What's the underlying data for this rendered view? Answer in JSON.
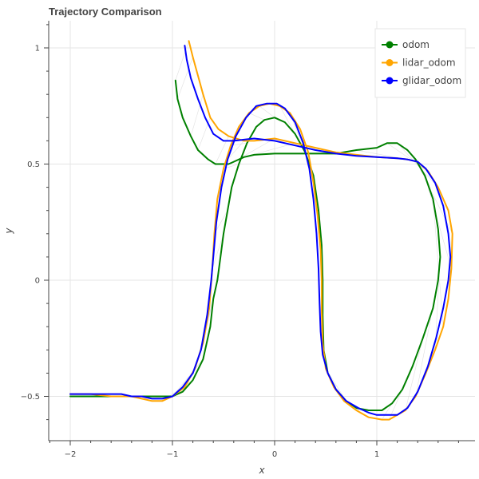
{
  "chart_data": {
    "type": "line",
    "title": "Trajectory Comparison",
    "xlabel": "x",
    "ylabel": "y",
    "xlim": [
      -2.2,
      1.95
    ],
    "ylim": [
      -0.69,
      1.12
    ],
    "x_ticks": [
      -2,
      -1,
      0,
      1
    ],
    "x_tick_labels": [
      "−2",
      "−1",
      "0",
      "1"
    ],
    "y_ticks": [
      -0.5,
      0,
      0.5,
      1
    ],
    "y_tick_labels": [
      "−0.5",
      "0",
      "0.5",
      "1"
    ],
    "grid": true,
    "legend_position": "top-right",
    "series": [
      {
        "name": "odom",
        "color": "#008000",
        "points": [
          [
            -2.0,
            -0.5
          ],
          [
            -1.7,
            -0.5
          ],
          [
            -1.4,
            -0.5
          ],
          [
            -1.2,
            -0.5
          ],
          [
            -1.0,
            -0.5
          ],
          [
            -0.9,
            -0.48
          ],
          [
            -0.8,
            -0.43
          ],
          [
            -0.7,
            -0.34
          ],
          [
            -0.63,
            -0.2
          ],
          [
            -0.6,
            -0.08
          ],
          [
            -0.56,
            0.0
          ],
          [
            -0.53,
            0.1
          ],
          [
            -0.5,
            0.2
          ],
          [
            -0.46,
            0.3
          ],
          [
            -0.42,
            0.4
          ],
          [
            -0.35,
            0.5
          ],
          [
            -0.27,
            0.59
          ],
          [
            -0.18,
            0.66
          ],
          [
            -0.1,
            0.69
          ],
          [
            0.0,
            0.7
          ],
          [
            0.1,
            0.68
          ],
          [
            0.2,
            0.63
          ],
          [
            0.3,
            0.55
          ],
          [
            0.38,
            0.45
          ],
          [
            0.43,
            0.3
          ],
          [
            0.46,
            0.15
          ],
          [
            0.47,
            0.0
          ],
          [
            0.47,
            -0.15
          ],
          [
            0.48,
            -0.3
          ],
          [
            0.52,
            -0.4
          ],
          [
            0.6,
            -0.47
          ],
          [
            0.7,
            -0.52
          ],
          [
            0.8,
            -0.55
          ],
          [
            0.92,
            -0.56
          ],
          [
            1.05,
            -0.56
          ],
          [
            1.15,
            -0.53
          ],
          [
            1.25,
            -0.47
          ],
          [
            1.35,
            -0.37
          ],
          [
            1.45,
            -0.25
          ],
          [
            1.55,
            -0.12
          ],
          [
            1.6,
            0.0
          ],
          [
            1.62,
            0.1
          ],
          [
            1.6,
            0.22
          ],
          [
            1.55,
            0.35
          ],
          [
            1.47,
            0.45
          ],
          [
            1.38,
            0.52
          ],
          [
            1.3,
            0.56
          ],
          [
            1.2,
            0.59
          ],
          [
            1.1,
            0.59
          ],
          [
            1.0,
            0.57
          ],
          [
            0.8,
            0.56
          ],
          [
            0.6,
            0.545
          ],
          [
            0.4,
            0.545
          ],
          [
            0.2,
            0.545
          ],
          [
            0.0,
            0.545
          ],
          [
            -0.2,
            0.54
          ],
          [
            -0.3,
            0.53
          ],
          [
            -0.4,
            0.51
          ],
          [
            -0.45,
            0.5
          ],
          [
            -0.5,
            0.5
          ],
          [
            -0.58,
            0.5
          ],
          [
            -0.65,
            0.52
          ],
          [
            -0.75,
            0.56
          ],
          [
            -0.82,
            0.62
          ],
          [
            -0.9,
            0.7
          ],
          [
            -0.95,
            0.78
          ],
          [
            -0.97,
            0.86
          ]
        ]
      },
      {
        "name": "lidar_odom",
        "color": "#ffa500",
        "points": [
          [
            -2.0,
            -0.49
          ],
          [
            -1.8,
            -0.49
          ],
          [
            -1.6,
            -0.5
          ],
          [
            -1.4,
            -0.5
          ],
          [
            -1.3,
            -0.51
          ],
          [
            -1.2,
            -0.52
          ],
          [
            -1.1,
            -0.52
          ],
          [
            -1.0,
            -0.5
          ],
          [
            -0.88,
            -0.46
          ],
          [
            -0.78,
            -0.38
          ],
          [
            -0.7,
            -0.27
          ],
          [
            -0.64,
            -0.12
          ],
          [
            -0.61,
            0.05
          ],
          [
            -0.59,
            0.2
          ],
          [
            -0.56,
            0.35
          ],
          [
            -0.5,
            0.48
          ],
          [
            -0.43,
            0.58
          ],
          [
            -0.35,
            0.66
          ],
          [
            -0.25,
            0.72
          ],
          [
            -0.15,
            0.75
          ],
          [
            -0.05,
            0.76
          ],
          [
            0.05,
            0.75
          ],
          [
            0.15,
            0.72
          ],
          [
            0.25,
            0.65
          ],
          [
            0.33,
            0.55
          ],
          [
            0.38,
            0.42
          ],
          [
            0.42,
            0.28
          ],
          [
            0.45,
            0.13
          ],
          [
            0.46,
            0.0
          ],
          [
            0.46,
            -0.13
          ],
          [
            0.47,
            -0.27
          ],
          [
            0.5,
            -0.38
          ],
          [
            0.58,
            -0.46
          ],
          [
            0.68,
            -0.52
          ],
          [
            0.8,
            -0.56
          ],
          [
            0.92,
            -0.59
          ],
          [
            1.05,
            -0.6
          ],
          [
            1.12,
            -0.6
          ],
          [
            1.2,
            -0.58
          ],
          [
            1.28,
            -0.56
          ],
          [
            1.38,
            -0.5
          ],
          [
            1.48,
            -0.4
          ],
          [
            1.57,
            -0.3
          ],
          [
            1.65,
            -0.2
          ],
          [
            1.7,
            -0.08
          ],
          [
            1.73,
            0.05
          ],
          [
            1.74,
            0.2
          ],
          [
            1.7,
            0.3
          ],
          [
            1.6,
            0.4
          ],
          [
            1.5,
            0.47
          ],
          [
            1.4,
            0.51
          ],
          [
            1.3,
            0.52
          ],
          [
            1.2,
            0.525
          ],
          [
            1.0,
            0.53
          ],
          [
            0.8,
            0.54
          ],
          [
            0.6,
            0.55
          ],
          [
            0.4,
            0.57
          ],
          [
            0.2,
            0.59
          ],
          [
            0.0,
            0.61
          ],
          [
            -0.2,
            0.6
          ],
          [
            -0.3,
            0.6
          ],
          [
            -0.45,
            0.62
          ],
          [
            -0.55,
            0.65
          ],
          [
            -0.63,
            0.7
          ],
          [
            -0.7,
            0.8
          ],
          [
            -0.75,
            0.88
          ],
          [
            -0.8,
            0.96
          ],
          [
            -0.84,
            1.03
          ]
        ]
      },
      {
        "name": "glidar_odom",
        "color": "#0000ff",
        "points": [
          [
            -2.0,
            -0.49
          ],
          [
            -1.8,
            -0.49
          ],
          [
            -1.6,
            -0.49
          ],
          [
            -1.5,
            -0.49
          ],
          [
            -1.4,
            -0.5
          ],
          [
            -1.3,
            -0.5
          ],
          [
            -1.2,
            -0.51
          ],
          [
            -1.1,
            -0.51
          ],
          [
            -1.0,
            -0.5
          ],
          [
            -0.9,
            -0.46
          ],
          [
            -0.8,
            -0.4
          ],
          [
            -0.72,
            -0.3
          ],
          [
            -0.66,
            -0.15
          ],
          [
            -0.62,
            0.0
          ],
          [
            -0.6,
            0.1
          ],
          [
            -0.57,
            0.25
          ],
          [
            -0.52,
            0.4
          ],
          [
            -0.46,
            0.52
          ],
          [
            -0.38,
            0.62
          ],
          [
            -0.28,
            0.7
          ],
          [
            -0.18,
            0.75
          ],
          [
            -0.08,
            0.76
          ],
          [
            0.02,
            0.76
          ],
          [
            0.1,
            0.74
          ],
          [
            0.2,
            0.68
          ],
          [
            0.28,
            0.59
          ],
          [
            0.34,
            0.48
          ],
          [
            0.38,
            0.35
          ],
          [
            0.41,
            0.2
          ],
          [
            0.43,
            0.05
          ],
          [
            0.44,
            -0.1
          ],
          [
            0.45,
            -0.22
          ],
          [
            0.47,
            -0.32
          ],
          [
            0.52,
            -0.4
          ],
          [
            0.6,
            -0.47
          ],
          [
            0.7,
            -0.52
          ],
          [
            0.82,
            -0.55
          ],
          [
            0.92,
            -0.57
          ],
          [
            1.0,
            -0.58
          ],
          [
            1.1,
            -0.58
          ],
          [
            1.2,
            -0.58
          ],
          [
            1.3,
            -0.55
          ],
          [
            1.4,
            -0.48
          ],
          [
            1.5,
            -0.37
          ],
          [
            1.58,
            -0.25
          ],
          [
            1.65,
            -0.12
          ],
          [
            1.7,
            0.0
          ],
          [
            1.72,
            0.1
          ],
          [
            1.7,
            0.2
          ],
          [
            1.65,
            0.32
          ],
          [
            1.57,
            0.42
          ],
          [
            1.48,
            0.48
          ],
          [
            1.4,
            0.51
          ],
          [
            1.3,
            0.52
          ],
          [
            1.2,
            0.525
          ],
          [
            1.0,
            0.53
          ],
          [
            0.8,
            0.535
          ],
          [
            0.6,
            0.545
          ],
          [
            0.4,
            0.56
          ],
          [
            0.2,
            0.58
          ],
          [
            0.0,
            0.6
          ],
          [
            -0.2,
            0.61
          ],
          [
            -0.3,
            0.605
          ],
          [
            -0.4,
            0.6
          ],
          [
            -0.5,
            0.6
          ],
          [
            -0.6,
            0.63
          ],
          [
            -0.68,
            0.7
          ],
          [
            -0.75,
            0.78
          ],
          [
            -0.82,
            0.87
          ],
          [
            -0.86,
            0.95
          ],
          [
            -0.88,
            1.01
          ]
        ]
      }
    ]
  }
}
